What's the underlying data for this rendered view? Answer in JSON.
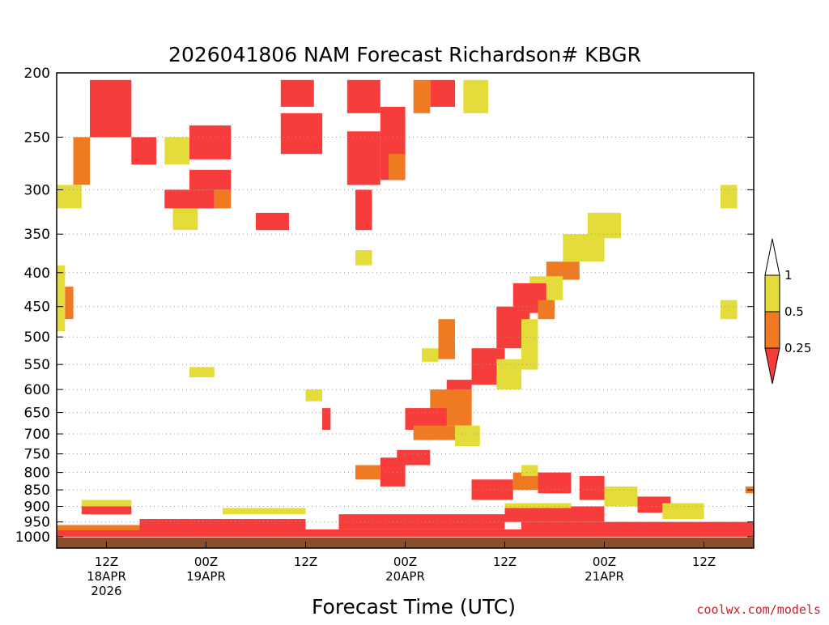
{
  "chart_data": {
    "type": "heatmap",
    "title": "2026041806 NAM Forecast Richardson# KBGR",
    "xlabel": "Forecast Time (UTC)",
    "ylabel": "",
    "credit": "coolwx.com/models",
    "y_axis": {
      "scale": "log-pressure",
      "reversed": true,
      "range": [
        200,
        1000
      ],
      "ticks": [
        200,
        250,
        300,
        350,
        400,
        450,
        500,
        550,
        600,
        650,
        700,
        750,
        800,
        850,
        900,
        950,
        1000
      ],
      "grid": "dotted"
    },
    "x_axis": {
      "range_hours": [
        0,
        84
      ],
      "ticks": [
        {
          "hour": 6,
          "labels": [
            "12Z",
            "18APR",
            "2026"
          ]
        },
        {
          "hour": 18,
          "labels": [
            "00Z",
            "19APR"
          ]
        },
        {
          "hour": 30,
          "labels": [
            "12Z"
          ]
        },
        {
          "hour": 42,
          "labels": [
            "00Z",
            "20APR"
          ]
        },
        {
          "hour": 54,
          "labels": [
            "12Z"
          ]
        },
        {
          "hour": 66,
          "labels": [
            "00Z",
            "21APR"
          ]
        },
        {
          "hour": 78,
          "labels": [
            "12Z"
          ]
        }
      ]
    },
    "legend": {
      "placement": "right",
      "bins": [
        {
          "label": "1",
          "color": "#ffffff"
        },
        {
          "label": "0.5",
          "color": "#e3dc3a"
        },
        {
          "label": "0.25",
          "color": "#f07a22"
        },
        {
          "label": "",
          "color": "#f73c3c"
        }
      ]
    },
    "ground_color": "#8b4d2a",
    "colors": {
      "lt025": "#f73c3c",
      "lt05": "#f07a22",
      "lt1": "#e3dc3a"
    },
    "regions": [
      {
        "cat": "lt025",
        "h": [
          4,
          9
        ],
        "p": [
          205,
          250
        ]
      },
      {
        "cat": "lt05",
        "h": [
          2,
          4
        ],
        "p": [
          250,
          295
        ]
      },
      {
        "cat": "lt1",
        "h": [
          0,
          3
        ],
        "p": [
          295,
          320
        ]
      },
      {
        "cat": "lt025",
        "h": [
          9,
          12
        ],
        "p": [
          250,
          275
        ]
      },
      {
        "cat": "lt1",
        "h": [
          13,
          16
        ],
        "p": [
          250,
          275
        ]
      },
      {
        "cat": "lt025",
        "h": [
          16,
          21
        ],
        "p": [
          240,
          270
        ]
      },
      {
        "cat": "lt025",
        "h": [
          16,
          21
        ],
        "p": [
          280,
          300
        ]
      },
      {
        "cat": "lt025",
        "h": [
          13,
          19
        ],
        "p": [
          300,
          320
        ]
      },
      {
        "cat": "lt05",
        "h": [
          19,
          21
        ],
        "p": [
          300,
          320
        ]
      },
      {
        "cat": "lt1",
        "h": [
          14,
          17
        ],
        "p": [
          320,
          345
        ]
      },
      {
        "cat": "lt025",
        "h": [
          24,
          28
        ],
        "p": [
          325,
          345
        ]
      },
      {
        "cat": "lt025",
        "h": [
          27,
          31
        ],
        "p": [
          205,
          225
        ]
      },
      {
        "cat": "lt025",
        "h": [
          27,
          32
        ],
        "p": [
          230,
          265
        ]
      },
      {
        "cat": "lt025",
        "h": [
          35,
          39
        ],
        "p": [
          205,
          230
        ]
      },
      {
        "cat": "lt025",
        "h": [
          35,
          39
        ],
        "p": [
          245,
          295
        ]
      },
      {
        "cat": "lt025",
        "h": [
          36,
          38
        ],
        "p": [
          300,
          345
        ]
      },
      {
        "cat": "lt025",
        "h": [
          39,
          42
        ],
        "p": [
          225,
          290
        ]
      },
      {
        "cat": "lt05",
        "h": [
          40,
          42
        ],
        "p": [
          265,
          290
        ]
      },
      {
        "cat": "lt05",
        "h": [
          43,
          45
        ],
        "p": [
          205,
          230
        ]
      },
      {
        "cat": "lt025",
        "h": [
          45,
          48
        ],
        "p": [
          205,
          225
        ]
      },
      {
        "cat": "lt1",
        "h": [
          49,
          52
        ],
        "p": [
          205,
          230
        ]
      },
      {
        "cat": "lt1",
        "h": [
          36,
          38
        ],
        "p": [
          370,
          390
        ]
      },
      {
        "cat": "lt1",
        "h": [
          64,
          68
        ],
        "p": [
          325,
          355
        ]
      },
      {
        "cat": "lt1",
        "h": [
          61,
          66
        ],
        "p": [
          350,
          385
        ]
      },
      {
        "cat": "lt05",
        "h": [
          59,
          63
        ],
        "p": [
          385,
          410
        ]
      },
      {
        "cat": "lt1",
        "h": [
          57,
          61
        ],
        "p": [
          405,
          440
        ]
      },
      {
        "cat": "lt025",
        "h": [
          55,
          59
        ],
        "p": [
          415,
          460
        ]
      },
      {
        "cat": "lt05",
        "h": [
          58,
          60
        ],
        "p": [
          440,
          470
        ]
      },
      {
        "cat": "lt025",
        "h": [
          53,
          57
        ],
        "p": [
          450,
          520
        ]
      },
      {
        "cat": "lt1",
        "h": [
          56,
          58
        ],
        "p": [
          470,
          560
        ]
      },
      {
        "cat": "lt025",
        "h": [
          50,
          54
        ],
        "p": [
          520,
          590
        ]
      },
      {
        "cat": "lt1",
        "h": [
          53,
          56
        ],
        "p": [
          540,
          600
        ]
      },
      {
        "cat": "lt05",
        "h": [
          46,
          48
        ],
        "p": [
          470,
          540
        ]
      },
      {
        "cat": "lt1",
        "h": [
          44,
          46
        ],
        "p": [
          520,
          545
        ]
      },
      {
        "cat": "lt025",
        "h": [
          47,
          50
        ],
        "p": [
          580,
          625
        ]
      },
      {
        "cat": "lt05",
        "h": [
          45,
          50
        ],
        "p": [
          600,
          680
        ]
      },
      {
        "cat": "lt025",
        "h": [
          42,
          47
        ],
        "p": [
          640,
          690
        ]
      },
      {
        "cat": "lt05",
        "h": [
          43,
          48
        ],
        "p": [
          680,
          715
        ]
      },
      {
        "cat": "lt1",
        "h": [
          48,
          51
        ],
        "p": [
          680,
          730
        ]
      },
      {
        "cat": "lt1",
        "h": [
          0,
          1
        ],
        "p": [
          390,
          490
        ]
      },
      {
        "cat": "lt05",
        "h": [
          1,
          2
        ],
        "p": [
          420,
          470
        ]
      },
      {
        "cat": "lt1",
        "h": [
          80,
          82
        ],
        "p": [
          440,
          470
        ]
      },
      {
        "cat": "lt1",
        "h": [
          16,
          19
        ],
        "p": [
          555,
          575
        ]
      },
      {
        "cat": "lt1",
        "h": [
          30,
          32
        ],
        "p": [
          600,
          625
        ]
      },
      {
        "cat": "lt025",
        "h": [
          32,
          33
        ],
        "p": [
          640,
          690
        ]
      },
      {
        "cat": "lt1",
        "h": [
          80,
          82
        ],
        "p": [
          295,
          320
        ]
      },
      {
        "cat": "lt025",
        "h": [
          39,
          42
        ],
        "p": [
          760,
          840
        ]
      },
      {
        "cat": "lt05",
        "h": [
          36,
          39
        ],
        "p": [
          780,
          820
        ]
      },
      {
        "cat": "lt025",
        "h": [
          41,
          45
        ],
        "p": [
          740,
          780
        ]
      },
      {
        "cat": "lt025",
        "h": [
          50,
          55
        ],
        "p": [
          820,
          880
        ]
      },
      {
        "cat": "lt05",
        "h": [
          55,
          58
        ],
        "p": [
          800,
          850
        ]
      },
      {
        "cat": "lt1",
        "h": [
          56,
          58
        ],
        "p": [
          780,
          810
        ]
      },
      {
        "cat": "lt025",
        "h": [
          58,
          62
        ],
        "p": [
          800,
          860
        ]
      },
      {
        "cat": "lt025",
        "h": [
          63,
          66
        ],
        "p": [
          810,
          880
        ]
      },
      {
        "cat": "lt1",
        "h": [
          66,
          70
        ],
        "p": [
          840,
          900
        ]
      },
      {
        "cat": "lt025",
        "h": [
          70,
          74
        ],
        "p": [
          870,
          920
        ]
      },
      {
        "cat": "lt1",
        "h": [
          73,
          78
        ],
        "p": [
          890,
          940
        ]
      },
      {
        "cat": "lt05",
        "h": [
          83,
          84
        ],
        "p": [
          840,
          860
        ]
      },
      {
        "cat": "lt025",
        "h": [
          0,
          84
        ],
        "p": [
          975,
          1000
        ]
      },
      {
        "cat": "lt025",
        "h": [
          10,
          30
        ],
        "p": [
          940,
          975
        ]
      },
      {
        "cat": "lt025",
        "h": [
          34,
          54
        ],
        "p": [
          925,
          975
        ]
      },
      {
        "cat": "lt025",
        "h": [
          56,
          84
        ],
        "p": [
          950,
          985
        ]
      },
      {
        "cat": "lt05",
        "h": [
          0,
          10
        ],
        "p": [
          960,
          978
        ]
      },
      {
        "cat": "lt1",
        "h": [
          3,
          9
        ],
        "p": [
          880,
          900
        ]
      },
      {
        "cat": "lt025",
        "h": [
          3,
          9
        ],
        "p": [
          900,
          925
        ]
      },
      {
        "cat": "lt1",
        "h": [
          20,
          30
        ],
        "p": [
          905,
          925
        ]
      },
      {
        "cat": "lt025",
        "h": [
          54,
          66
        ],
        "p": [
          900,
          950
        ]
      },
      {
        "cat": "lt1",
        "h": [
          54,
          62
        ],
        "p": [
          890,
          905
        ]
      }
    ]
  }
}
